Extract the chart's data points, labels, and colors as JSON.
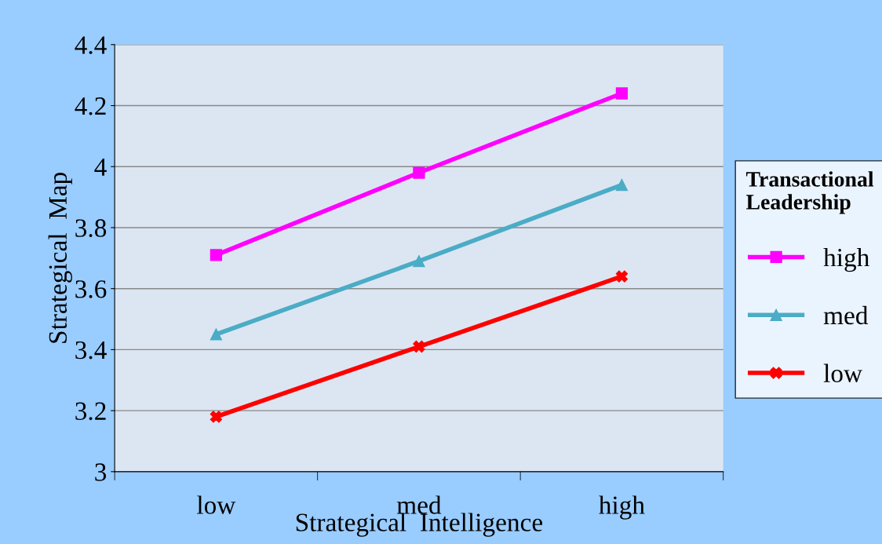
{
  "chart_data": {
    "type": "line",
    "xlabel": "Strategical  Intelligence",
    "ylabel": "Strategical  Map",
    "categories": [
      "low",
      "med",
      "high"
    ],
    "series": [
      {
        "name": "high",
        "color": "#ff00ff",
        "marker": "square",
        "values": [
          3.71,
          3.98,
          4.24
        ]
      },
      {
        "name": "med",
        "color": "#4bacc6",
        "marker": "triangle",
        "values": [
          3.45,
          3.69,
          3.94
        ]
      },
      {
        "name": "low",
        "color": "#ff0000",
        "marker": "cross",
        "values": [
          3.18,
          3.41,
          3.64
        ]
      }
    ],
    "legend_title": "Transactional Leadership",
    "ylim": [
      3,
      4.4
    ],
    "yticks": [
      3,
      3.2,
      3.4,
      3.6,
      3.8,
      4,
      4.2,
      4.4
    ],
    "grid": "y",
    "legend": "right",
    "line_style": "solid"
  }
}
